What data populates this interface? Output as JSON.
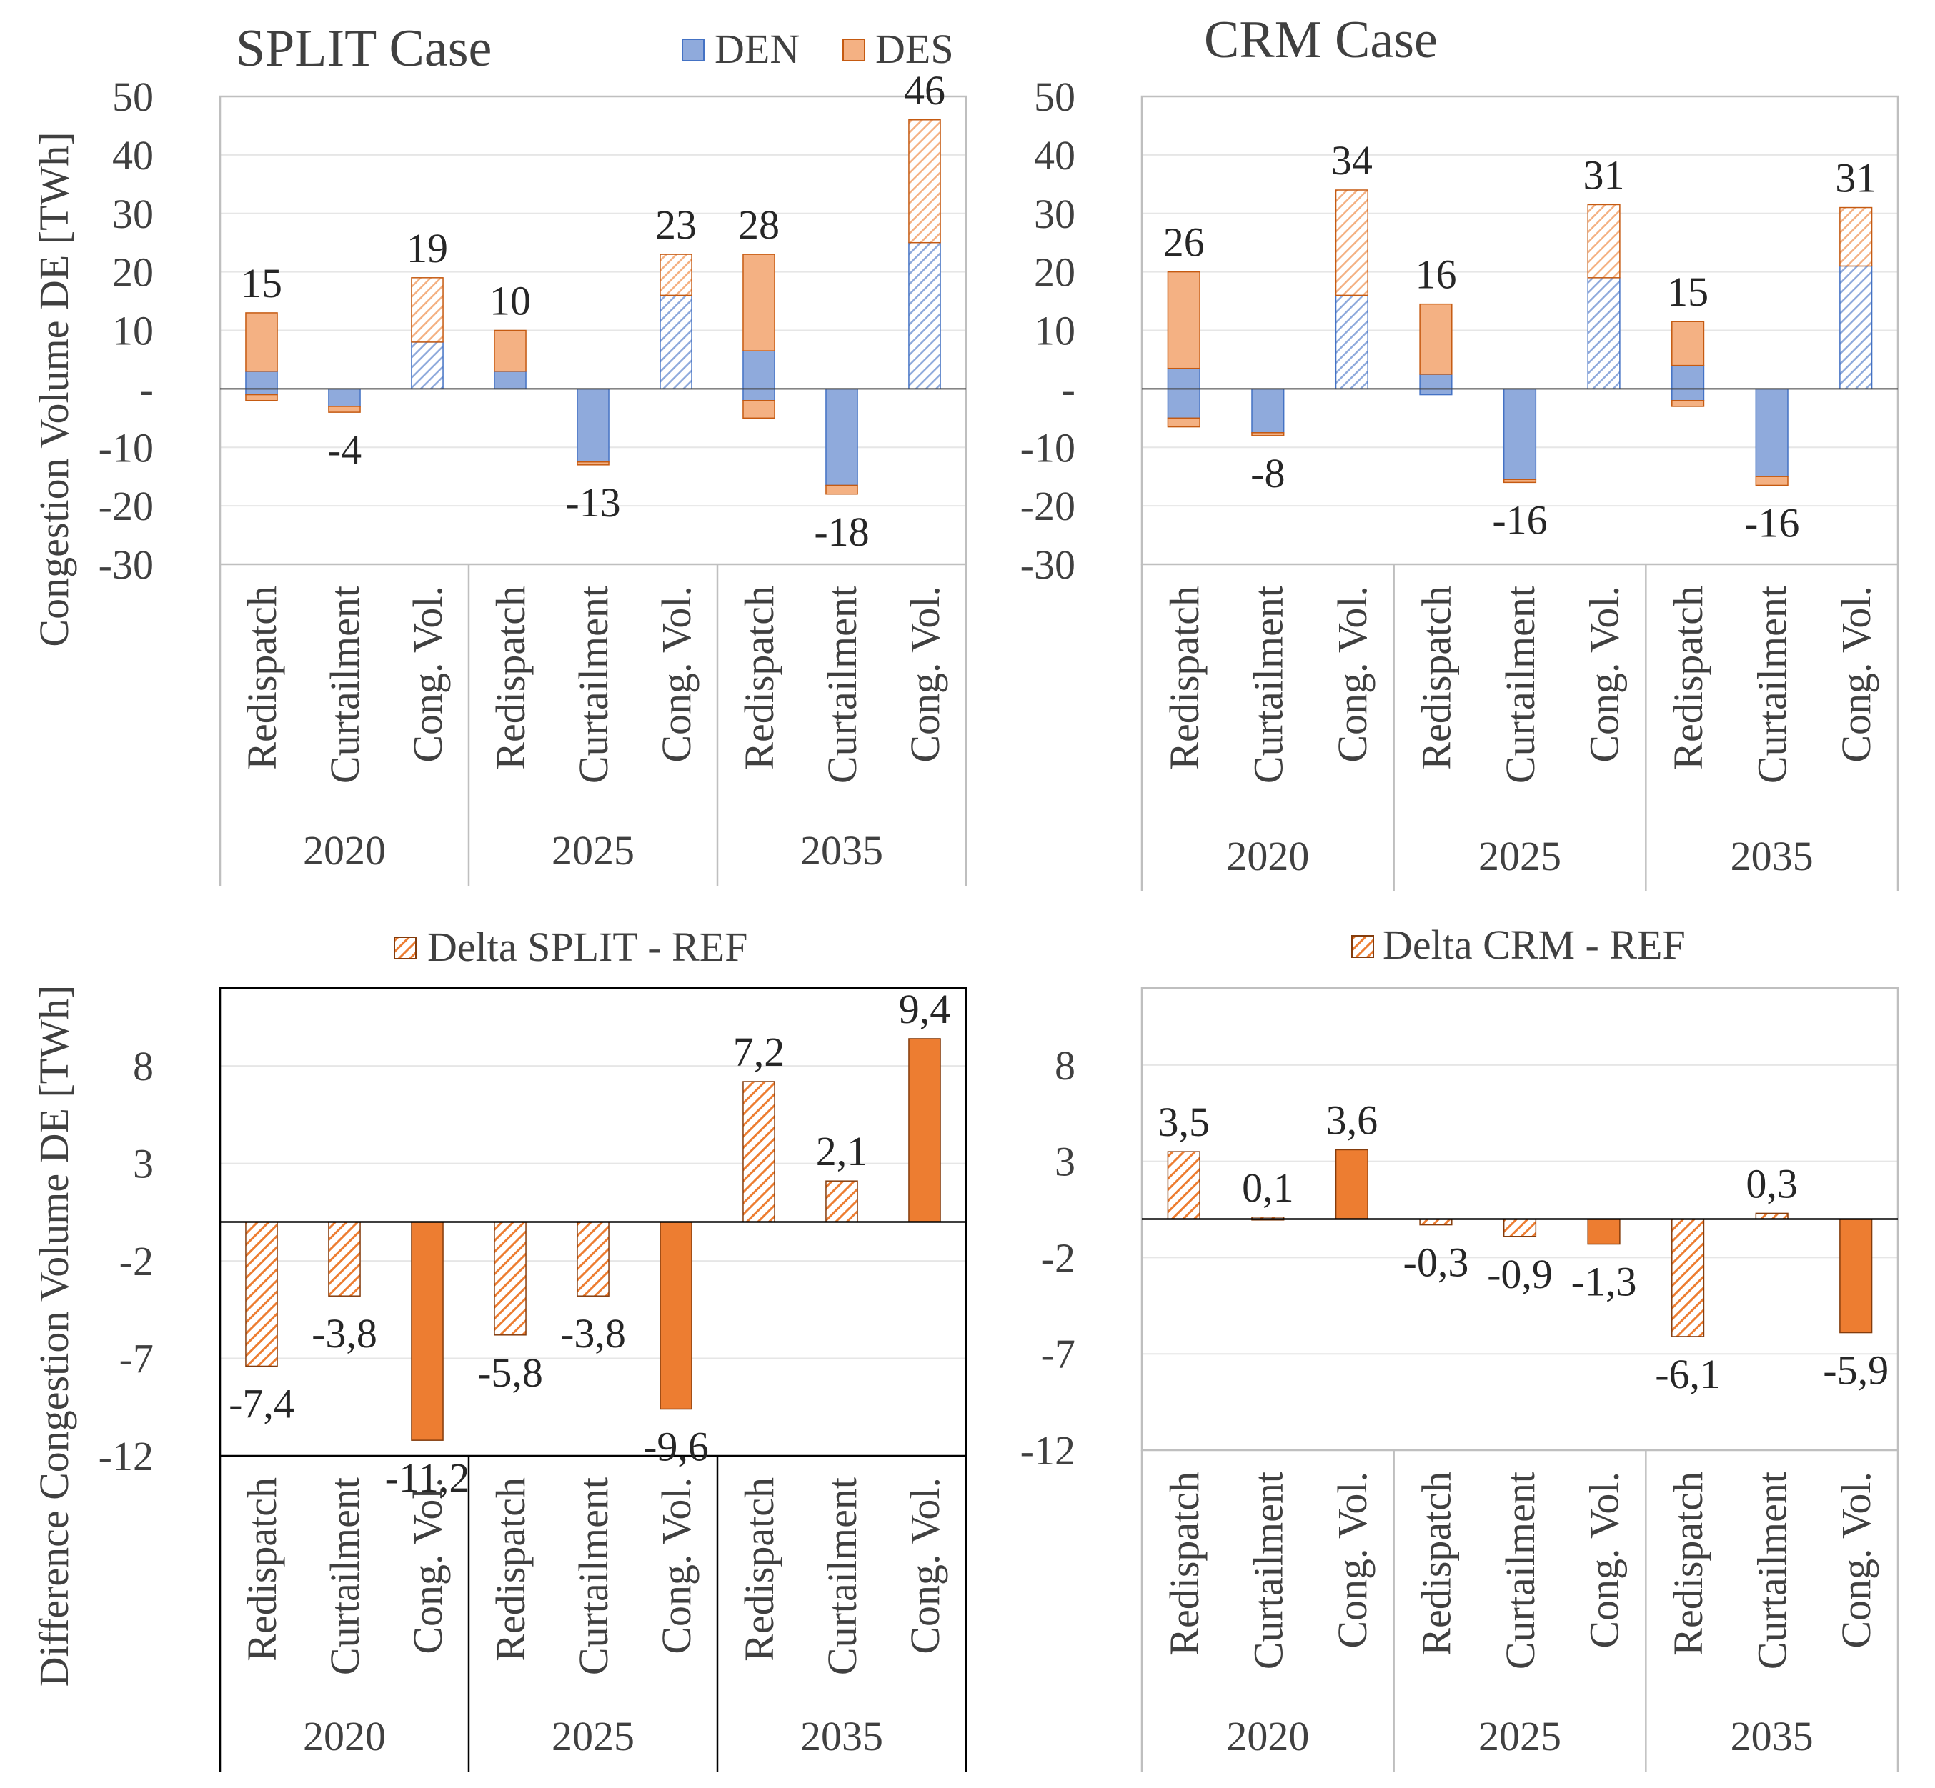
{
  "colors": {
    "den": "#8faadc",
    "den_edge": "#4472c4",
    "des": "#f4b183",
    "des_edge": "#c55a11",
    "delta": "#ed7d31",
    "delta_edge": "#843c0c",
    "axis": "#404040",
    "grid": "#e6e6e6",
    "frame": "#bfbfbf",
    "text": "#404040"
  },
  "chart_data": [
    {
      "type": "bar",
      "stacked": true,
      "title": "SPLIT Case",
      "ylabel": "Congestion Volume DE [TWh]",
      "ylim": [
        -30,
        50
      ],
      "yticks": [
        50,
        40,
        30,
        20,
        10,
        "-",
        -10,
        -20,
        -30
      ],
      "legend": [
        "DEN",
        "DES"
      ],
      "legend_position": "top-right",
      "years": [
        "2020",
        "2025",
        "2035"
      ],
      "categories": [
        "Redispatch",
        "Curtailment",
        "Cong. Vol."
      ],
      "bars": [
        {
          "year": "2020",
          "category": "Redispatch",
          "den_pos": 3,
          "des_pos": 10,
          "den_neg": -1,
          "des_neg": -1,
          "hatched": false,
          "label": "15"
        },
        {
          "year": "2020",
          "category": "Curtailment",
          "den_pos": 0,
          "des_pos": 0,
          "den_neg": -3,
          "des_neg": -1,
          "hatched": false,
          "label": "-4"
        },
        {
          "year": "2020",
          "category": "Cong. Vol.",
          "den_pos": 8,
          "des_pos": 11,
          "den_neg": 0,
          "des_neg": 0,
          "hatched": true,
          "label": "19"
        },
        {
          "year": "2025",
          "category": "Redispatch",
          "den_pos": 3,
          "des_pos": 7,
          "den_neg": 0,
          "des_neg": 0,
          "hatched": false,
          "label": "10"
        },
        {
          "year": "2025",
          "category": "Curtailment",
          "den_pos": 0,
          "des_pos": 0,
          "den_neg": -12.5,
          "des_neg": -0.5,
          "hatched": false,
          "label": "-13"
        },
        {
          "year": "2025",
          "category": "Cong. Vol.",
          "den_pos": 16,
          "des_pos": 7,
          "den_neg": 0,
          "des_neg": 0,
          "hatched": true,
          "label": "23"
        },
        {
          "year": "2035",
          "category": "Redispatch",
          "den_pos": 6.5,
          "des_pos": 16.5,
          "den_neg": -2,
          "des_neg": -3,
          "hatched": false,
          "label": "28"
        },
        {
          "year": "2035",
          "category": "Curtailment",
          "den_pos": 0,
          "des_pos": 0,
          "den_neg": -16.5,
          "des_neg": -1.5,
          "hatched": false,
          "label": "-18"
        },
        {
          "year": "2035",
          "category": "Cong. Vol.",
          "den_pos": 25,
          "des_pos": 21,
          "den_neg": 0,
          "des_neg": 0,
          "hatched": true,
          "label": "46"
        }
      ]
    },
    {
      "type": "bar",
      "stacked": true,
      "title": "CRM Case",
      "ylabel": "",
      "ylim": [
        -30,
        50
      ],
      "yticks": [
        50,
        40,
        30,
        20,
        10,
        "-",
        -10,
        -20,
        -30
      ],
      "years": [
        "2020",
        "2025",
        "2035"
      ],
      "categories": [
        "Redispatch",
        "Curtailment",
        "Cong. Vol."
      ],
      "bars": [
        {
          "year": "2020",
          "category": "Redispatch",
          "den_pos": 3.5,
          "des_pos": 16.5,
          "den_neg": -5,
          "des_neg": -1.5,
          "hatched": false,
          "label": "26"
        },
        {
          "year": "2020",
          "category": "Curtailment",
          "den_pos": 0,
          "des_pos": 0,
          "den_neg": -7.5,
          "des_neg": -0.5,
          "hatched": false,
          "label": "-8"
        },
        {
          "year": "2020",
          "category": "Cong. Vol.",
          "den_pos": 16,
          "des_pos": 18,
          "den_neg": 0,
          "des_neg": 0,
          "hatched": true,
          "label": "34"
        },
        {
          "year": "2025",
          "category": "Redispatch",
          "den_pos": 2.5,
          "des_pos": 12,
          "den_neg": -1,
          "des_neg": 0,
          "hatched": false,
          "label": "16"
        },
        {
          "year": "2025",
          "category": "Curtailment",
          "den_pos": 0,
          "des_pos": 0,
          "den_neg": -15.5,
          "des_neg": -0.5,
          "hatched": false,
          "label": "-16"
        },
        {
          "year": "2025",
          "category": "Cong. Vol.",
          "den_pos": 19,
          "des_pos": 12.5,
          "den_neg": 0,
          "des_neg": 0,
          "hatched": true,
          "label": "31"
        },
        {
          "year": "2035",
          "category": "Redispatch",
          "den_pos": 4,
          "des_pos": 7.5,
          "den_neg": -2,
          "des_neg": -1,
          "hatched": false,
          "label": "15"
        },
        {
          "year": "2035",
          "category": "Curtailment",
          "den_pos": 0,
          "des_pos": 0,
          "den_neg": -15,
          "des_neg": -1.5,
          "hatched": false,
          "label": "-16"
        },
        {
          "year": "2035",
          "category": "Cong. Vol.",
          "den_pos": 21,
          "des_pos": 10,
          "den_neg": 0,
          "des_neg": 0,
          "hatched": true,
          "label": "31"
        }
      ]
    },
    {
      "type": "bar",
      "title": "",
      "ylabel": "Difference Congestion Volume DE [TWh]",
      "ylim": [
        -12,
        12
      ],
      "yticks": [
        8,
        3,
        -2,
        -7,
        -12
      ],
      "legend": [
        "Delta SPLIT - REF"
      ],
      "legend_position": "top-center",
      "years": [
        "2020",
        "2025",
        "2035"
      ],
      "categories": [
        "Redispatch",
        "Curtailment",
        "Cong. Vol."
      ],
      "values": [
        -7.4,
        -3.8,
        -11.2,
        -5.8,
        -3.8,
        -9.6,
        7.2,
        2.1,
        9.4
      ],
      "labels": [
        "-7,4",
        "-3,8",
        "-11,2",
        "-5,8",
        "-3,8",
        "-9,6",
        "7,2",
        "2,1",
        "9,4"
      ],
      "solid": [
        false,
        false,
        true,
        false,
        false,
        true,
        false,
        false,
        true
      ]
    },
    {
      "type": "bar",
      "title": "",
      "ylabel": "",
      "ylim": [
        -12,
        12
      ],
      "yticks": [
        8,
        3,
        -2,
        -7,
        -12
      ],
      "legend": [
        "Delta CRM - REF"
      ],
      "legend_position": "top-center",
      "years": [
        "2020",
        "2025",
        "2035"
      ],
      "categories": [
        "Redispatch",
        "Curtailment",
        "Cong. Vol."
      ],
      "values": [
        3.5,
        0.1,
        3.6,
        -0.3,
        -0.9,
        -1.3,
        -6.1,
        0.3,
        -5.9
      ],
      "labels": [
        "3,5",
        "0,1",
        "3,6",
        "-0,3",
        "-0,9",
        "-1,3",
        "-6,1",
        "0,3",
        "-5,9"
      ],
      "solid": [
        false,
        false,
        true,
        false,
        false,
        true,
        false,
        false,
        true
      ]
    }
  ]
}
